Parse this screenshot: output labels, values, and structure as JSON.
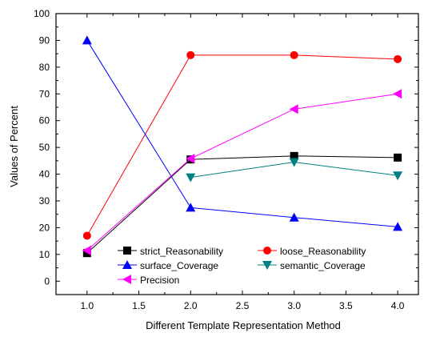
{
  "chart_data": {
    "type": "line",
    "title": "",
    "xlabel": "Different Template Representation Method",
    "ylabel": "Values of Percent",
    "xlim": [
      0.7,
      4.2
    ],
    "ylim": [
      -5,
      100
    ],
    "x_ticks": [
      1.0,
      1.5,
      2.0,
      2.5,
      3.0,
      3.5,
      4.0
    ],
    "x_tick_labels": [
      "1.0",
      "1.5",
      "2.0",
      "2.5",
      "3.0",
      "3.5",
      "4.0"
    ],
    "y_ticks": [
      0,
      10,
      20,
      30,
      40,
      50,
      60,
      70,
      80,
      90,
      100
    ],
    "y_tick_labels": [
      "0",
      "10",
      "20",
      "30",
      "40",
      "50",
      "60",
      "70",
      "80",
      "90",
      "100"
    ],
    "grid": false,
    "legend_position": "bottom-center",
    "series": [
      {
        "name": "strict_Reasonability",
        "color": "#000000",
        "marker": "square",
        "points": [
          [
            1.0,
            10.5
          ],
          [
            2.0,
            45.5
          ],
          [
            3.0,
            46.8
          ],
          [
            4.0,
            46.2
          ]
        ]
      },
      {
        "name": "loose_Reasonability",
        "color": "#ff0000",
        "marker": "circle",
        "points": [
          [
            1.0,
            17.0
          ],
          [
            2.0,
            84.5
          ],
          [
            3.0,
            84.5
          ],
          [
            4.0,
            83.0
          ]
        ]
      },
      {
        "name": "surface_Coverage",
        "color": "#0000ff",
        "marker": "triangle-up",
        "points": [
          [
            1.0,
            90.0
          ],
          [
            2.0,
            27.5
          ],
          [
            3.0,
            23.8
          ],
          [
            4.0,
            20.3
          ]
        ]
      },
      {
        "name": "semantic_Coverage",
        "color": "#008080",
        "marker": "triangle-down",
        "points": [
          [
            2.0,
            38.8
          ],
          [
            3.0,
            44.5
          ],
          [
            4.0,
            39.5
          ]
        ]
      },
      {
        "name": "Precision",
        "color": "#ff00ff",
        "marker": "triangle-left",
        "points": [
          [
            1.0,
            11.5
          ],
          [
            2.0,
            45.8
          ],
          [
            3.0,
            64.3
          ],
          [
            4.0,
            70.0
          ]
        ]
      }
    ]
  }
}
